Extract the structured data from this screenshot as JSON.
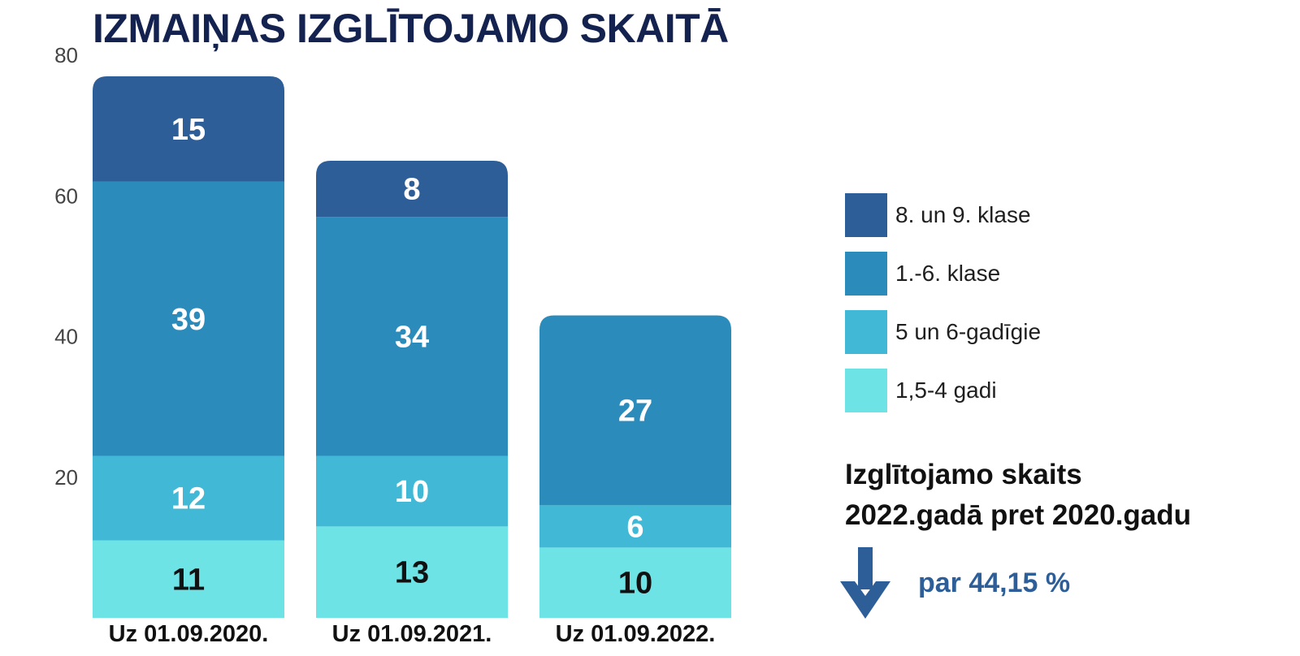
{
  "chart_data": {
    "type": "bar",
    "stacked": true,
    "title": "IZMAIŅAS IZGLĪTOJAMO SKAITĀ",
    "categories": [
      "Uz 01.09.2020.",
      "Uz 01.09.2021.",
      "Uz 01.09.2022."
    ],
    "series": [
      {
        "name": "1,5-4 gadi",
        "values": [
          11,
          13,
          10
        ],
        "color": "#6de3e6",
        "label_color": "#111111"
      },
      {
        "name": "5 un 6-gadīgie",
        "values": [
          12,
          10,
          6
        ],
        "color": "#41b9d6",
        "label_color": "#ffffff"
      },
      {
        "name": "1.-6. klase",
        "values": [
          39,
          34,
          27
        ],
        "color": "#2b8cbb",
        "label_color": "#ffffff"
      },
      {
        "name": "8. un 9. klase",
        "values": [
          15,
          8,
          0
        ],
        "color": "#2e5e98",
        "label_color": "#ffffff"
      }
    ],
    "ylim": [
      0,
      80
    ],
    "yticks": [
      20,
      40,
      60,
      80
    ],
    "grid": false,
    "legend_position": "right"
  },
  "legend_order": [
    3,
    2,
    1,
    0
  ],
  "note": {
    "line1": "Izglītojamo skaits",
    "line2": "2022.gadā pret 2020.gadu",
    "change": "par 44,15 %",
    "arrow_icon": "arrow-down-icon",
    "arrow_color": "#2e5e98"
  }
}
